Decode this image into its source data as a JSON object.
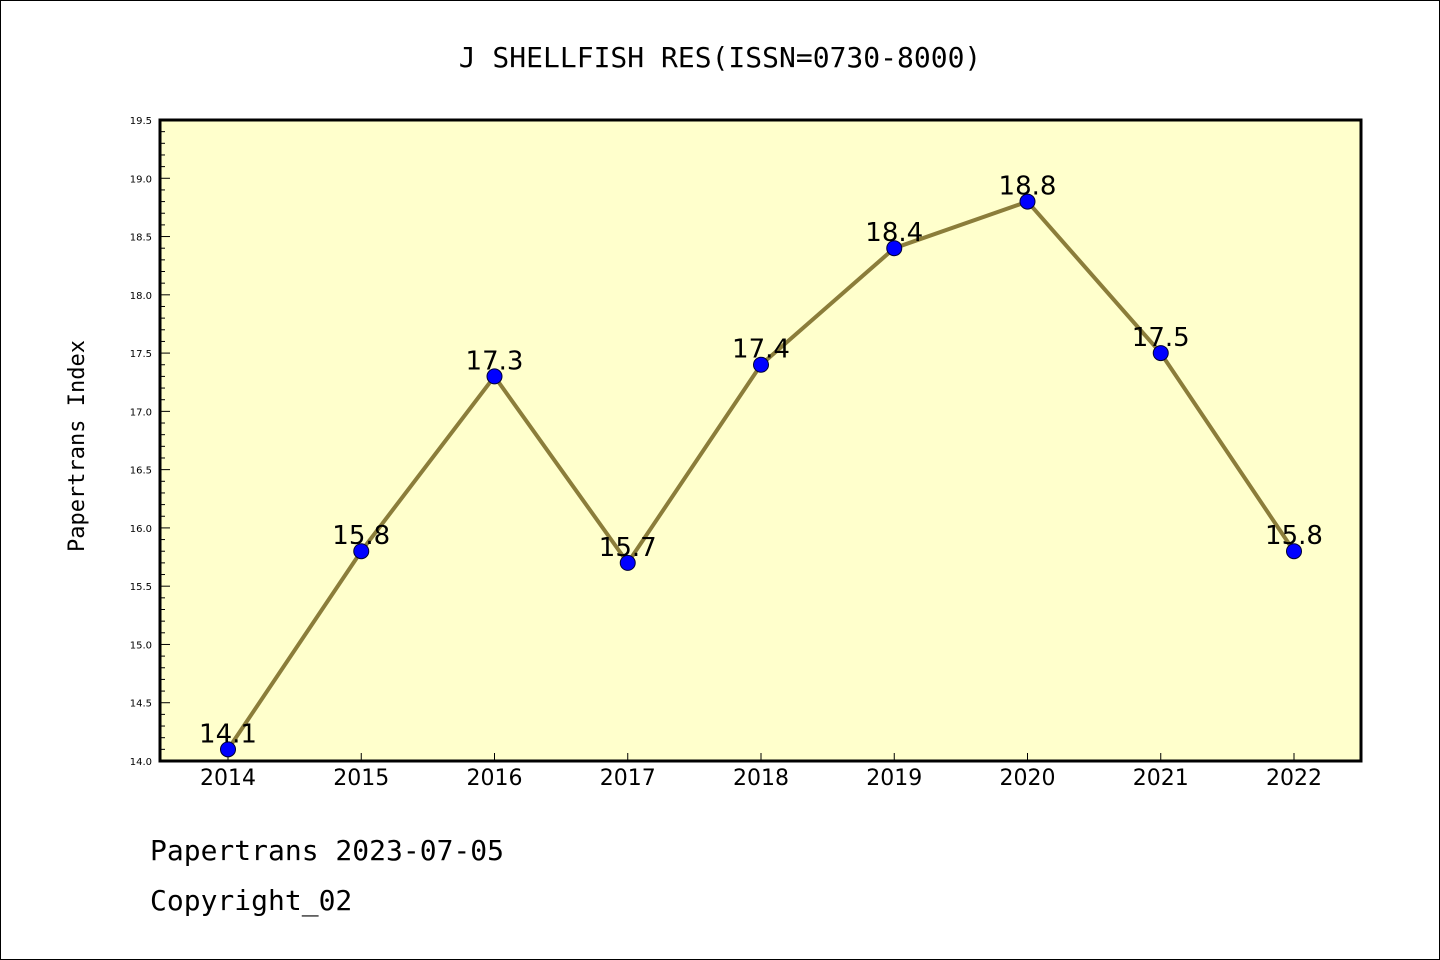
{
  "colors": {
    "plot_background": "#ffffcc",
    "line": "#8b7d3a",
    "marker": "#0000ff",
    "axis": "#000000"
  },
  "footer": {
    "date_line": "Papertrans 2023-07-05",
    "copyright": "Copyright_02"
  },
  "chart_data": {
    "type": "line",
    "title": "J SHELLFISH RES(ISSN=0730-8000)",
    "xlabel": "",
    "ylabel": "Papertrans Index",
    "categories": [
      "2014",
      "2015",
      "2016",
      "2017",
      "2018",
      "2019",
      "2020",
      "2021",
      "2022"
    ],
    "series": [
      {
        "values": [
          14.1,
          15.8,
          17.3,
          15.7,
          17.4,
          18.4,
          18.8,
          17.5,
          15.8
        ],
        "labels": [
          "14.1",
          "15.8",
          "17.3",
          "15.7",
          "17.4",
          "18.4",
          "18.8",
          "17.5",
          "15.8"
        ]
      }
    ],
    "ylim": [
      14.0,
      19.5
    ],
    "yticks": [
      "14.0",
      "14.5",
      "15.0",
      "15.5",
      "16.0",
      "16.5",
      "17.0",
      "17.5",
      "18.0",
      "18.5",
      "19.0",
      "19.5"
    ],
    "grid": false,
    "legend": "none"
  }
}
